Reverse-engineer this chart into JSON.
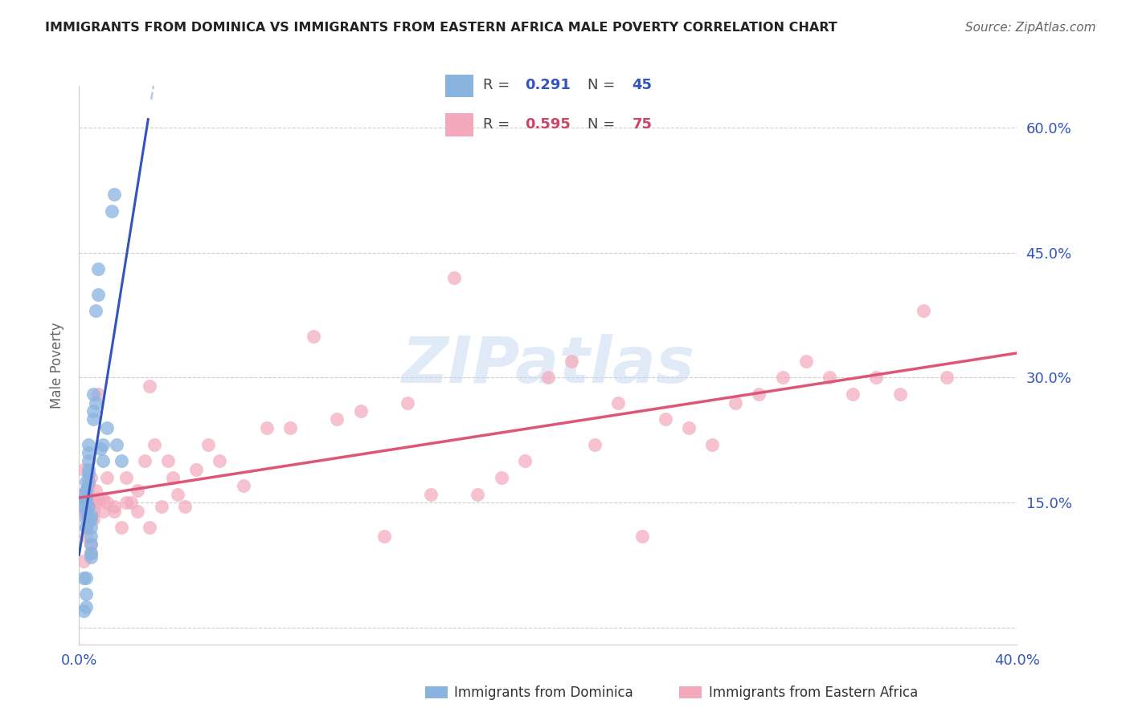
{
  "title": "IMMIGRANTS FROM DOMINICA VS IMMIGRANTS FROM EASTERN AFRICA MALE POVERTY CORRELATION CHART",
  "source": "Source: ZipAtlas.com",
  "ylabel": "Male Poverty",
  "xlim": [
    0.0,
    0.4
  ],
  "ylim": [
    -0.02,
    0.65
  ],
  "xticks": [
    0.0,
    0.1,
    0.2,
    0.3,
    0.4
  ],
  "yticks": [
    0.0,
    0.15,
    0.3,
    0.45,
    0.6
  ],
  "ytick_labels": [
    "",
    "15.0%",
    "30.0%",
    "45.0%",
    "60.0%"
  ],
  "xtick_labels": [
    "0.0%",
    "",
    "",
    "",
    "40.0%"
  ],
  "R1": "0.291",
  "N1": "45",
  "R2": "0.595",
  "N2": "75",
  "color_blue": "#8ab4e0",
  "color_pink": "#f4a8bc",
  "color_blue_dark": "#3355bb",
  "color_pink_dark": "#cc4466",
  "color_trend_blue_solid": "#3355bb",
  "color_trend_blue_dash": "#aabbdd",
  "color_trend_pink": "#dd5577",
  "label1": "Immigrants from Dominica",
  "label2": "Immigrants from Eastern Africa",
  "dominica_x": [
    0.002,
    0.002,
    0.002,
    0.002,
    0.003,
    0.003,
    0.003,
    0.003,
    0.003,
    0.003,
    0.003,
    0.004,
    0.004,
    0.004,
    0.004,
    0.004,
    0.004,
    0.004,
    0.005,
    0.005,
    0.005,
    0.005,
    0.005,
    0.005,
    0.005,
    0.006,
    0.006,
    0.006,
    0.007,
    0.007,
    0.008,
    0.008,
    0.009,
    0.01,
    0.01,
    0.012,
    0.014,
    0.015,
    0.016,
    0.018,
    0.003,
    0.003,
    0.003,
    0.003,
    0.003
  ],
  "dominica_y": [
    0.06,
    0.02,
    0.155,
    0.145,
    0.14,
    0.15,
    0.13,
    0.12,
    0.155,
    0.165,
    0.175,
    0.19,
    0.2,
    0.21,
    0.22,
    0.185,
    0.175,
    0.145,
    0.11,
    0.1,
    0.09,
    0.085,
    0.135,
    0.13,
    0.12,
    0.26,
    0.28,
    0.25,
    0.27,
    0.38,
    0.4,
    0.43,
    0.215,
    0.2,
    0.22,
    0.24,
    0.5,
    0.52,
    0.22,
    0.2,
    0.06,
    0.025,
    0.15,
    0.165,
    0.04
  ],
  "eastern_x": [
    0.002,
    0.002,
    0.002,
    0.002,
    0.003,
    0.003,
    0.003,
    0.004,
    0.004,
    0.004,
    0.004,
    0.005,
    0.005,
    0.005,
    0.006,
    0.006,
    0.007,
    0.007,
    0.008,
    0.008,
    0.01,
    0.01,
    0.012,
    0.012,
    0.015,
    0.015,
    0.018,
    0.02,
    0.02,
    0.022,
    0.025,
    0.025,
    0.028,
    0.03,
    0.03,
    0.032,
    0.035,
    0.038,
    0.04,
    0.042,
    0.045,
    0.05,
    0.055,
    0.06,
    0.07,
    0.08,
    0.09,
    0.1,
    0.11,
    0.12,
    0.13,
    0.14,
    0.15,
    0.16,
    0.17,
    0.18,
    0.19,
    0.2,
    0.21,
    0.22,
    0.23,
    0.24,
    0.25,
    0.26,
    0.27,
    0.28,
    0.29,
    0.3,
    0.31,
    0.32,
    0.33,
    0.34,
    0.35,
    0.36,
    0.37
  ],
  "eastern_y": [
    0.14,
    0.08,
    0.16,
    0.19,
    0.12,
    0.11,
    0.135,
    0.145,
    0.155,
    0.16,
    0.17,
    0.18,
    0.1,
    0.09,
    0.14,
    0.13,
    0.15,
    0.165,
    0.155,
    0.28,
    0.14,
    0.155,
    0.15,
    0.18,
    0.145,
    0.14,
    0.12,
    0.15,
    0.18,
    0.15,
    0.165,
    0.14,
    0.2,
    0.29,
    0.12,
    0.22,
    0.145,
    0.2,
    0.18,
    0.16,
    0.145,
    0.19,
    0.22,
    0.2,
    0.17,
    0.24,
    0.24,
    0.35,
    0.25,
    0.26,
    0.11,
    0.27,
    0.16,
    0.42,
    0.16,
    0.18,
    0.2,
    0.3,
    0.32,
    0.22,
    0.27,
    0.11,
    0.25,
    0.24,
    0.22,
    0.27,
    0.28,
    0.3,
    0.32,
    0.3,
    0.28,
    0.3,
    0.28,
    0.38,
    0.3
  ],
  "grid_color": "#cccccc",
  "spine_color": "#cccccc",
  "axis_label_color": "#3355bb",
  "ylabel_color": "#666666"
}
